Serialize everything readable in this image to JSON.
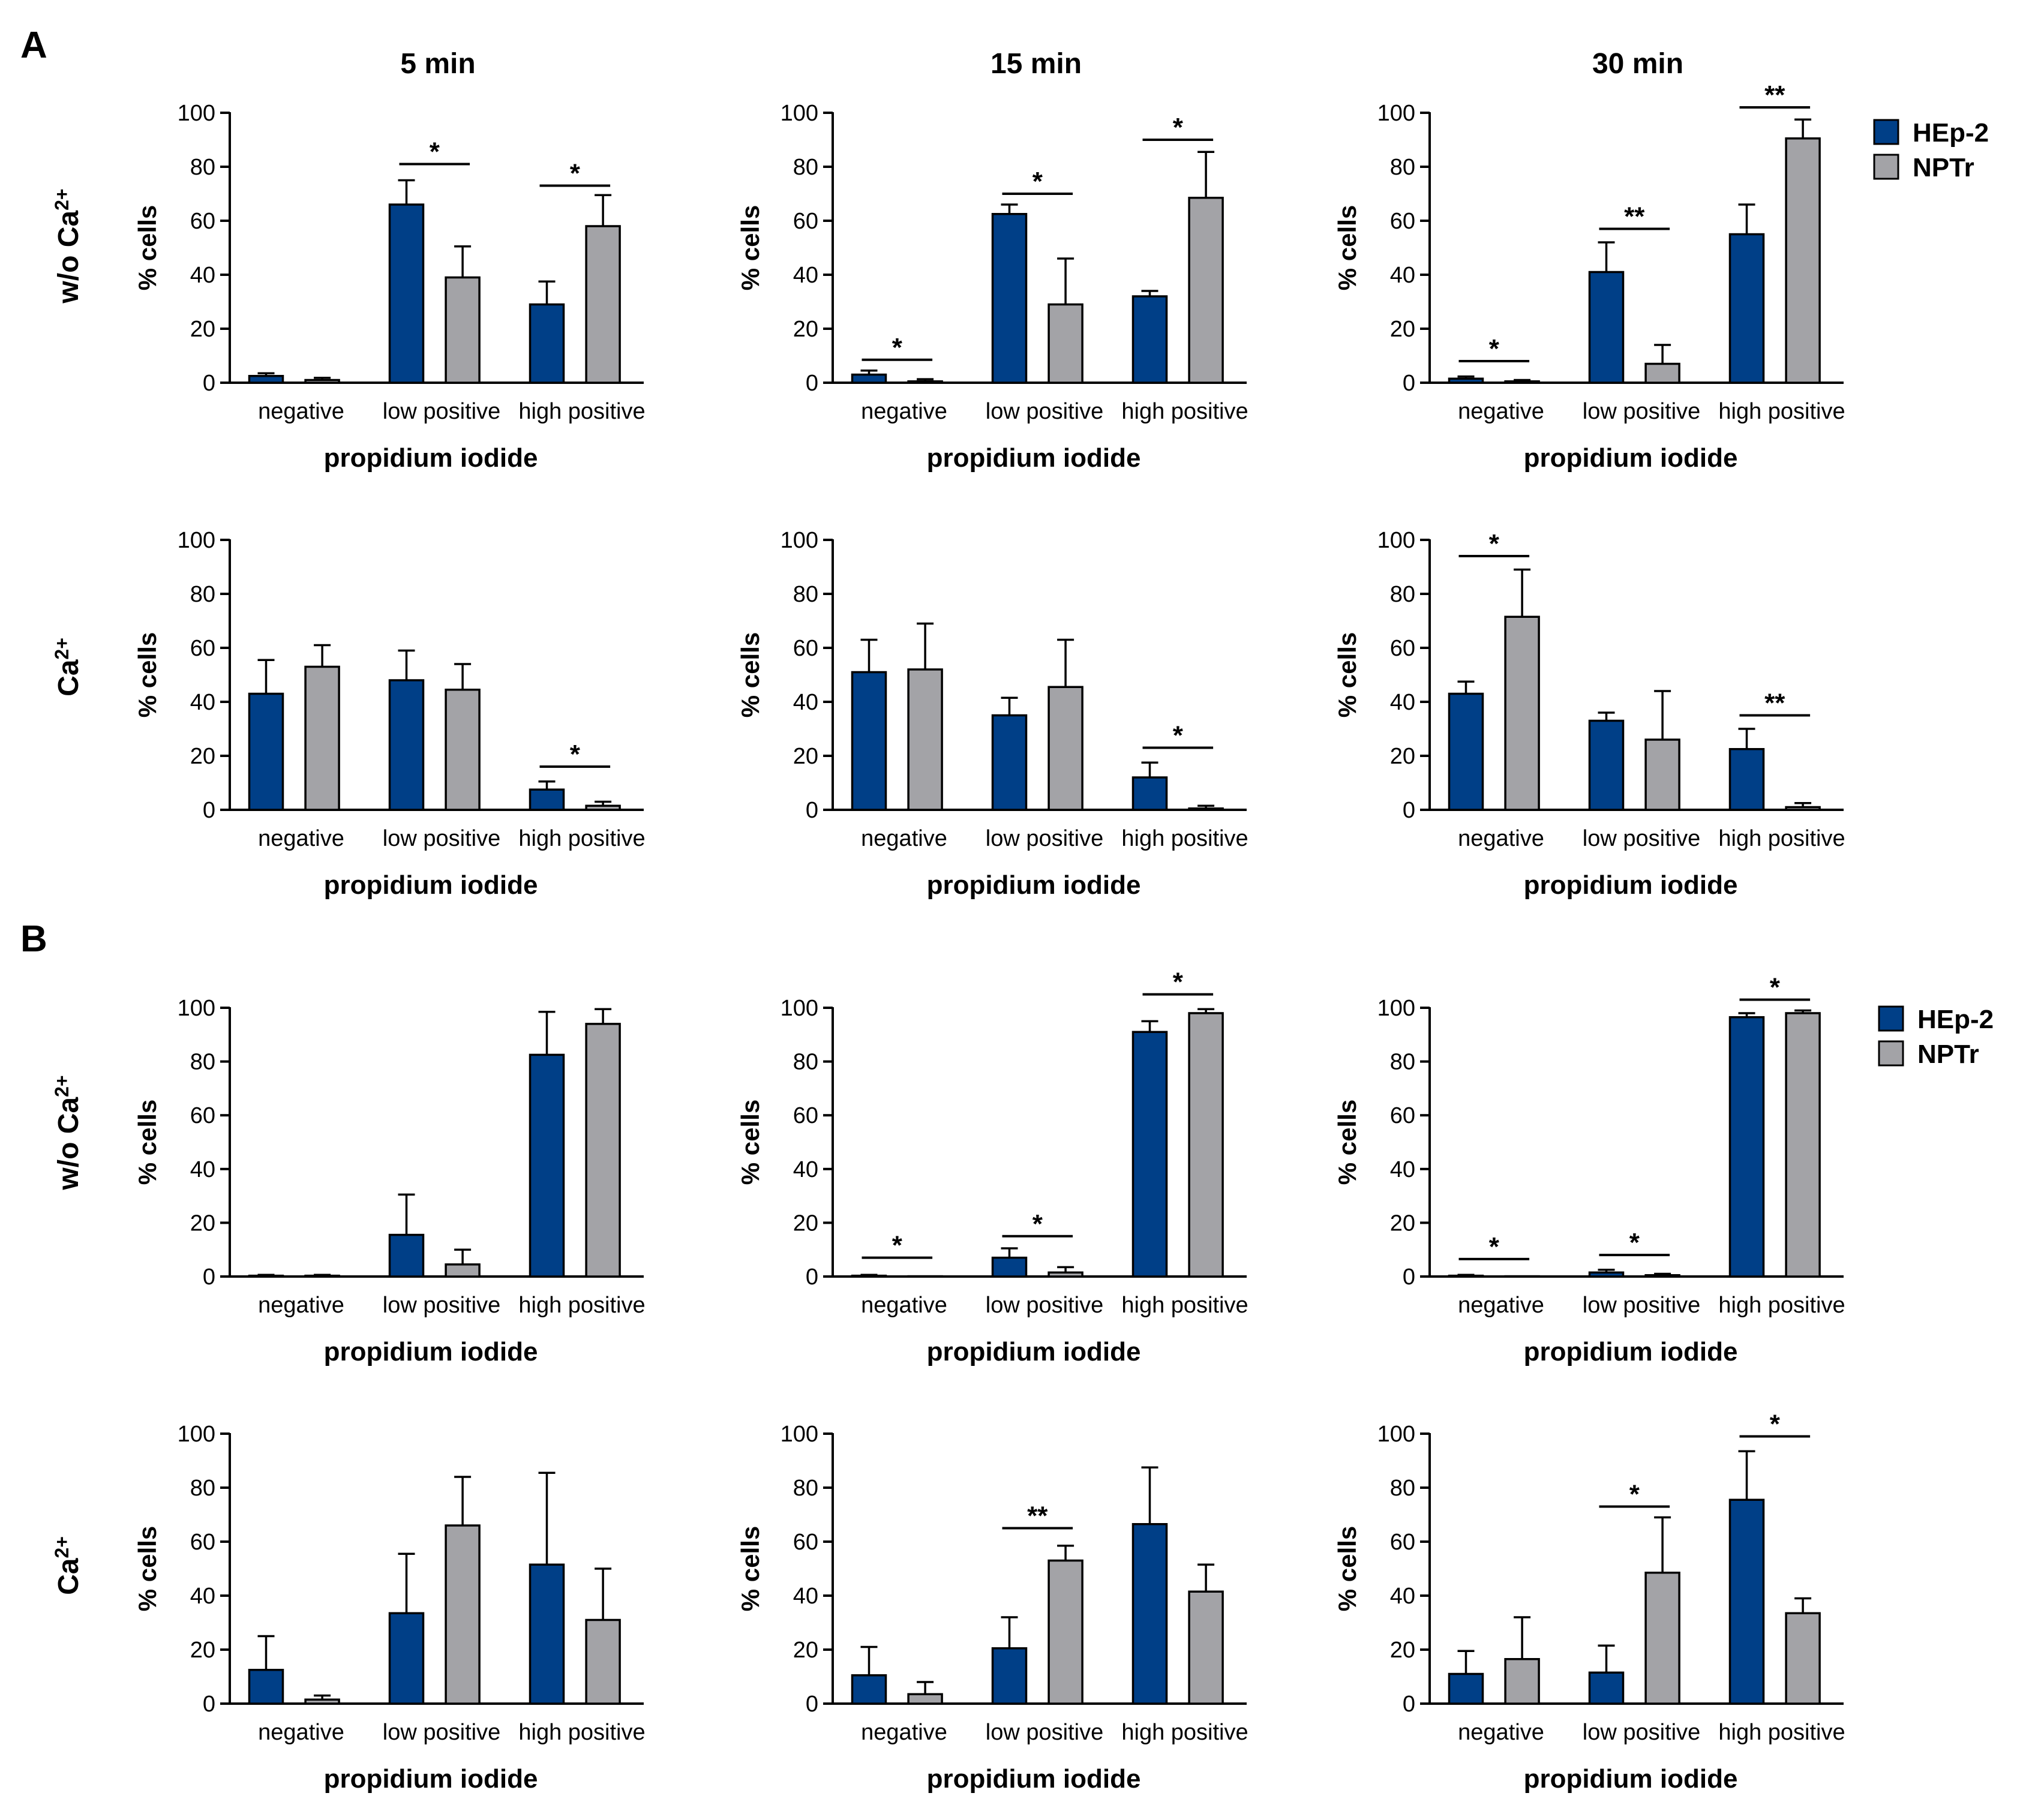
{
  "figure": {
    "panel_labels": [
      "A",
      "B"
    ],
    "column_titles": [
      "5 min",
      "15 min",
      "30 min"
    ],
    "row_labels": [
      {
        "main": "w/o Ca",
        "sup": "2+"
      },
      {
        "main": "Ca",
        "sup": "2+"
      },
      {
        "main": "w/o Ca",
        "sup": "2+"
      },
      {
        "main": "Ca",
        "sup": "2+"
      }
    ],
    "legend": {
      "entries": [
        {
          "name": "HEp-2",
          "color": "#003f87"
        },
        {
          "name": "NPTr",
          "color": "#a3a3a7"
        }
      ]
    }
  },
  "chart_data": [
    {
      "type": "bar",
      "panel": "A",
      "condition": "w/o Ca2+",
      "time": "5 min",
      "categories": [
        "negative",
        "low positive",
        "high positive"
      ],
      "series": [
        {
          "name": "HEp-2",
          "values": [
            2.5,
            66,
            29
          ],
          "errors": [
            1,
            9,
            8.5
          ]
        },
        {
          "name": "NPTr",
          "values": [
            1,
            39,
            58
          ],
          "errors": [
            0.8,
            11.5,
            11.5
          ]
        }
      ],
      "significance": [
        {
          "category": 1,
          "label": "*",
          "y": 81
        },
        {
          "category": 2,
          "label": "*",
          "y": 73
        }
      ],
      "xlabel": "propidium iodide",
      "ylabel": "% cells",
      "ylim": [
        0,
        100
      ],
      "yticks": [
        0,
        20,
        40,
        60,
        80,
        100
      ]
    },
    {
      "type": "bar",
      "panel": "A",
      "condition": "w/o Ca2+",
      "time": "15 min",
      "categories": [
        "negative",
        "low positive",
        "high positive"
      ],
      "series": [
        {
          "name": "HEp-2",
          "values": [
            3,
            62.5,
            32
          ],
          "errors": [
            1.5,
            3.5,
            2
          ]
        },
        {
          "name": "NPTr",
          "values": [
            0.5,
            29,
            68.5
          ],
          "errors": [
            0.8,
            17,
            17
          ]
        }
      ],
      "significance": [
        {
          "category": 0,
          "label": "*",
          "y": 8.5
        },
        {
          "category": 1,
          "label": "*",
          "y": 70
        },
        {
          "category": 2,
          "label": "*",
          "y": 90
        }
      ],
      "xlabel": "propidium iodide",
      "ylabel": "% cells",
      "ylim": [
        0,
        100
      ],
      "yticks": [
        0,
        20,
        40,
        60,
        80,
        100
      ]
    },
    {
      "type": "bar",
      "panel": "A",
      "condition": "w/o Ca2+",
      "time": "30 min",
      "categories": [
        "negative",
        "low positive",
        "high positive"
      ],
      "series": [
        {
          "name": "HEp-2",
          "values": [
            1.5,
            41,
            55
          ],
          "errors": [
            0.8,
            11,
            11
          ]
        },
        {
          "name": "NPTr",
          "values": [
            0.5,
            7,
            90.5
          ],
          "errors": [
            0.5,
            7,
            7
          ]
        }
      ],
      "significance": [
        {
          "category": 0,
          "label": "*",
          "y": 8
        },
        {
          "category": 1,
          "label": "**",
          "y": 57
        },
        {
          "category": 2,
          "label": "**",
          "y": 102
        }
      ],
      "xlabel": "propidium iodide",
      "ylabel": "% cells",
      "ylim": [
        0,
        100
      ],
      "yticks": [
        0,
        20,
        40,
        60,
        80,
        100
      ]
    },
    {
      "type": "bar",
      "panel": "A",
      "condition": "Ca2+",
      "time": "5 min",
      "categories": [
        "negative",
        "low positive",
        "high positive"
      ],
      "series": [
        {
          "name": "HEp-2",
          "values": [
            43,
            48,
            7.5
          ],
          "errors": [
            12.5,
            11,
            3
          ]
        },
        {
          "name": "NPTr",
          "values": [
            53,
            44.5,
            1.5
          ],
          "errors": [
            8,
            9.5,
            1.5
          ]
        }
      ],
      "significance": [
        {
          "category": 2,
          "label": "*",
          "y": 16
        }
      ],
      "xlabel": "propidium iodide",
      "ylabel": "% cells",
      "ylim": [
        0,
        100
      ],
      "yticks": [
        0,
        20,
        40,
        60,
        80,
        100
      ]
    },
    {
      "type": "bar",
      "panel": "A",
      "condition": "Ca2+",
      "time": "15 min",
      "categories": [
        "negative",
        "low positive",
        "high positive"
      ],
      "series": [
        {
          "name": "HEp-2",
          "values": [
            51,
            35,
            12
          ],
          "errors": [
            12,
            6.5,
            5.5
          ]
        },
        {
          "name": "NPTr",
          "values": [
            52,
            45.5,
            0.5
          ],
          "errors": [
            17,
            17.5,
            1
          ]
        }
      ],
      "significance": [
        {
          "category": 2,
          "label": "*",
          "y": 23
        }
      ],
      "xlabel": "propidium iodide",
      "ylabel": "% cells",
      "ylim": [
        0,
        100
      ],
      "yticks": [
        0,
        20,
        40,
        60,
        80,
        100
      ]
    },
    {
      "type": "bar",
      "panel": "A",
      "condition": "Ca2+",
      "time": "30 min",
      "categories": [
        "negative",
        "low positive",
        "high positive"
      ],
      "series": [
        {
          "name": "HEp-2",
          "values": [
            43,
            33,
            22.5
          ],
          "errors": [
            4.5,
            3,
            7.5
          ]
        },
        {
          "name": "NPTr",
          "values": [
            71.5,
            26,
            1
          ],
          "errors": [
            17.5,
            18,
            1.5
          ]
        }
      ],
      "significance": [
        {
          "category": 0,
          "label": "*",
          "y": 94
        },
        {
          "category": 2,
          "label": "**",
          "y": 35
        }
      ],
      "xlabel": "propidium iodide",
      "ylabel": "% cells",
      "ylim": [
        0,
        100
      ],
      "yticks": [
        0,
        20,
        40,
        60,
        80,
        100
      ]
    },
    {
      "type": "bar",
      "panel": "B",
      "condition": "w/o Ca2+",
      "time": "5 min",
      "categories": [
        "negative",
        "low positive",
        "high positive"
      ],
      "series": [
        {
          "name": "HEp-2",
          "values": [
            0.3,
            15.5,
            82.5
          ],
          "errors": [
            0.3,
            15,
            16
          ]
        },
        {
          "name": "NPTr",
          "values": [
            0.3,
            4.5,
            94
          ],
          "errors": [
            0.3,
            5.5,
            5.5
          ]
        }
      ],
      "significance": [],
      "xlabel": "propidium iodide",
      "ylabel": "% cells",
      "ylim": [
        0,
        100
      ],
      "yticks": [
        0,
        20,
        40,
        60,
        80,
        100
      ]
    },
    {
      "type": "bar",
      "panel": "B",
      "condition": "w/o Ca2+",
      "time": "15 min",
      "categories": [
        "negative",
        "low positive",
        "high positive"
      ],
      "series": [
        {
          "name": "HEp-2",
          "values": [
            0.3,
            7,
            91
          ],
          "errors": [
            0.3,
            3.5,
            4
          ]
        },
        {
          "name": "NPTr",
          "values": [
            0.1,
            1.5,
            98
          ],
          "errors": [
            0.1,
            2,
            1.5
          ]
        }
      ],
      "significance": [
        {
          "category": 0,
          "label": "*",
          "y": 7
        },
        {
          "category": 1,
          "label": "*",
          "y": 15
        },
        {
          "category": 2,
          "label": "*",
          "y": 105
        }
      ],
      "xlabel": "propidium iodide",
      "ylabel": "% cells",
      "ylim": [
        0,
        100
      ],
      "yticks": [
        0,
        20,
        40,
        60,
        80,
        100
      ]
    },
    {
      "type": "bar",
      "panel": "B",
      "condition": "w/o Ca2+",
      "time": "30 min",
      "categories": [
        "negative",
        "low positive",
        "high positive"
      ],
      "series": [
        {
          "name": "HEp-2",
          "values": [
            0.3,
            1.5,
            96.5
          ],
          "errors": [
            0.3,
            1,
            1.5
          ]
        },
        {
          "name": "NPTr",
          "values": [
            0.1,
            0.5,
            98
          ],
          "errors": [
            0.1,
            0.5,
            1
          ]
        }
      ],
      "significance": [
        {
          "category": 0,
          "label": "*",
          "y": 6.5
        },
        {
          "category": 1,
          "label": "*",
          "y": 8
        },
        {
          "category": 2,
          "label": "*",
          "y": 103
        }
      ],
      "xlabel": "propidium iodide",
      "ylabel": "% cells",
      "ylim": [
        0,
        100
      ],
      "yticks": [
        0,
        20,
        40,
        60,
        80,
        100
      ]
    },
    {
      "type": "bar",
      "panel": "B",
      "condition": "Ca2+",
      "time": "5 min",
      "categories": [
        "negative",
        "low positive",
        "high positive"
      ],
      "series": [
        {
          "name": "HEp-2",
          "values": [
            12.5,
            33.5,
            51.5
          ],
          "errors": [
            12.5,
            22,
            34
          ]
        },
        {
          "name": "NPTr",
          "values": [
            1.5,
            66,
            31
          ],
          "errors": [
            1.5,
            18,
            19
          ]
        }
      ],
      "significance": [],
      "xlabel": "propidium iodide",
      "ylabel": "% cells",
      "ylim": [
        0,
        100
      ],
      "yticks": [
        0,
        20,
        40,
        60,
        80,
        100
      ]
    },
    {
      "type": "bar",
      "panel": "B",
      "condition": "Ca2+",
      "time": "15 min",
      "categories": [
        "negative",
        "low positive",
        "high positive"
      ],
      "series": [
        {
          "name": "HEp-2",
          "values": [
            10.5,
            20.5,
            66.5
          ],
          "errors": [
            10.5,
            11.5,
            21
          ]
        },
        {
          "name": "NPTr",
          "values": [
            3.5,
            53,
            41.5
          ],
          "errors": [
            4.5,
            5.5,
            10
          ]
        }
      ],
      "significance": [
        {
          "category": 1,
          "label": "**",
          "y": 65
        }
      ],
      "xlabel": "propidium iodide",
      "ylabel": "% cells",
      "ylim": [
        0,
        100
      ],
      "yticks": [
        0,
        20,
        40,
        60,
        80,
        100
      ]
    },
    {
      "type": "bar",
      "panel": "B",
      "condition": "Ca2+",
      "time": "30 min",
      "categories": [
        "negative",
        "low positive",
        "high positive"
      ],
      "series": [
        {
          "name": "HEp-2",
          "values": [
            11,
            11.5,
            75.5
          ],
          "errors": [
            8.5,
            10,
            18
          ]
        },
        {
          "name": "NPTr",
          "values": [
            16.5,
            48.5,
            33.5
          ],
          "errors": [
            15.5,
            20.5,
            5.5
          ]
        }
      ],
      "significance": [
        {
          "category": 1,
          "label": "*",
          "y": 73
        },
        {
          "category": 2,
          "label": "*",
          "y": 99
        }
      ],
      "xlabel": "propidium iodide",
      "ylabel": "% cells",
      "ylim": [
        0,
        100
      ],
      "yticks": [
        0,
        20,
        40,
        60,
        80,
        100
      ]
    }
  ]
}
